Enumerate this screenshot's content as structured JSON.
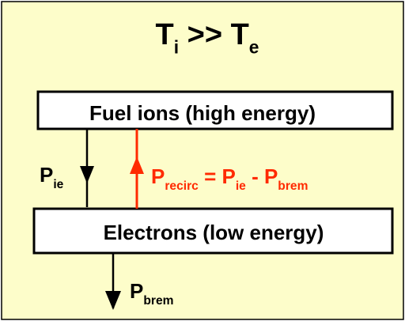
{
  "title": [
    {
      "base": "T",
      "sub": "i"
    },
    {
      "base": " >> T",
      "sub": "e"
    }
  ],
  "boxes": [
    {
      "label": "Fuel ions (high energy)"
    },
    {
      "label": "Electrons (low energy)"
    }
  ],
  "arrows": [
    {
      "label": [
        {
          "base": "P",
          "sub": "ie"
        }
      ]
    },
    {
      "label": [
        {
          "base": "P",
          "sub": "recirc"
        },
        {
          "base": " = P",
          "sub": "ie"
        },
        {
          "base": " - P",
          "sub": "brem"
        }
      ]
    },
    {
      "label": [
        {
          "base": "P",
          "sub": "brem"
        }
      ]
    }
  ]
}
